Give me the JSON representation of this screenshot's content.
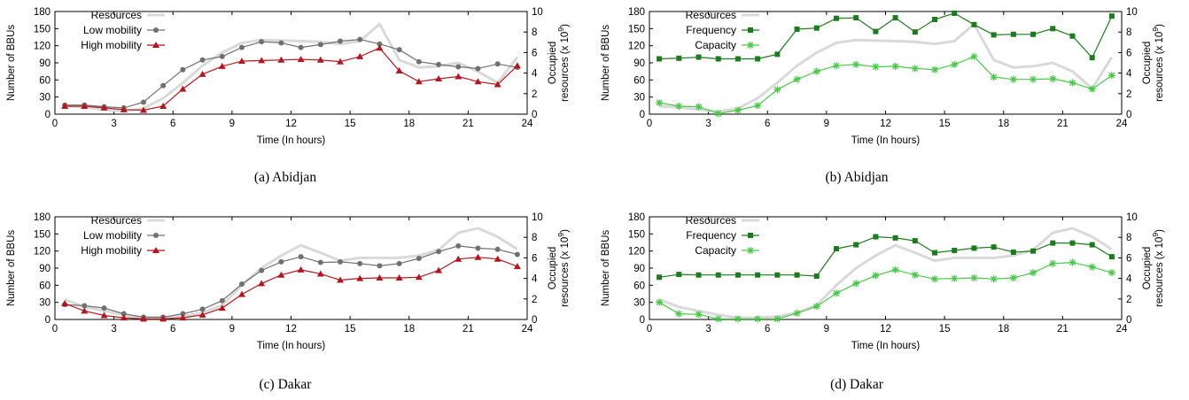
{
  "chart_data": [
    {
      "type": "line",
      "caption": "(a)  Abidjan",
      "xlabel": "Time (In hours)",
      "ylabel": "Number of BBUs",
      "y2label_line1": "Occupied",
      "y2label_line2": "resources (x 10",
      "y2label_exp": "9",
      "y2label_close": ")",
      "xlim": [
        0,
        24
      ],
      "ylim": [
        0,
        180
      ],
      "y2lim": [
        0,
        10
      ],
      "xticks": [
        0,
        3,
        6,
        9,
        12,
        15,
        18,
        21,
        24
      ],
      "yticks": [
        0,
        30,
        60,
        90,
        120,
        150,
        180
      ],
      "y2ticks": [
        0,
        2,
        4,
        6,
        8,
        10
      ],
      "legend_position": "top-left",
      "series": [
        {
          "name": "Resources",
          "style": "resources",
          "color": "#d9d9d9",
          "axis": "y",
          "x": [
            0.5,
            1.5,
            2.5,
            3.5,
            4.5,
            5.5,
            6.5,
            7.5,
            8.5,
            9.5,
            10.5,
            11.5,
            12.5,
            13.5,
            14.5,
            15.5,
            16.5,
            17.5,
            18.5,
            19.5,
            20.5,
            21.5,
            22.5,
            23.5
          ],
          "values": [
            14,
            12,
            8,
            5,
            10,
            28,
            55,
            85,
            108,
            125,
            130,
            129,
            128,
            127,
            123,
            128,
            158,
            95,
            82,
            84,
            90,
            75,
            55,
            100
          ]
        },
        {
          "name": "Low mobility",
          "style": "circle",
          "color": "#707070",
          "axis": "y",
          "x": [
            0.5,
            1.5,
            2.5,
            3.5,
            4.5,
            5.5,
            6.5,
            7.5,
            8.5,
            9.5,
            10.5,
            11.5,
            12.5,
            13.5,
            14.5,
            15.5,
            16.5,
            17.5,
            18.5,
            19.5,
            20.5,
            21.5,
            22.5,
            23.5
          ],
          "values": [
            16,
            16,
            13,
            11,
            21,
            50,
            78,
            95,
            101,
            117,
            127,
            125,
            117,
            122,
            128,
            131,
            123,
            113,
            92,
            87,
            83,
            80,
            88,
            82
          ]
        },
        {
          "name": "High mobility",
          "style": "triangle",
          "color": "#b0171f",
          "axis": "y",
          "x": [
            0.5,
            1.5,
            2.5,
            3.5,
            4.5,
            5.5,
            6.5,
            7.5,
            8.5,
            9.5,
            10.5,
            11.5,
            12.5,
            13.5,
            14.5,
            15.5,
            16.5,
            17.5,
            18.5,
            19.5,
            20.5,
            21.5,
            22.5,
            23.5
          ],
          "values": [
            14,
            14,
            11,
            8,
            7,
            14,
            44,
            70,
            84,
            93,
            94,
            95,
            96,
            95,
            92,
            101,
            116,
            76,
            57,
            62,
            66,
            57,
            52,
            85
          ]
        }
      ]
    },
    {
      "type": "line",
      "caption": "(b)  Abidjan",
      "xlabel": "Time (In hours)",
      "ylabel": "Number of BBUs",
      "y2label_line1": "Occupied",
      "y2label_line2": "resources (x 10",
      "y2label_exp": "9",
      "y2label_close": ")",
      "xlim": [
        0,
        24
      ],
      "ylim": [
        0,
        180
      ],
      "y2lim": [
        0,
        10
      ],
      "xticks": [
        0,
        3,
        6,
        9,
        12,
        15,
        18,
        21,
        24
      ],
      "yticks": [
        0,
        30,
        60,
        90,
        120,
        150,
        180
      ],
      "y2ticks": [
        0,
        2,
        4,
        6,
        8,
        10
      ],
      "legend_position": "top-left",
      "series": [
        {
          "name": "Resources",
          "style": "resources",
          "color": "#d9d9d9",
          "axis": "y",
          "x": [
            0.5,
            1.5,
            2.5,
            3.5,
            4.5,
            5.5,
            6.5,
            7.5,
            8.5,
            9.5,
            10.5,
            11.5,
            12.5,
            13.5,
            14.5,
            15.5,
            16.5,
            17.5,
            18.5,
            19.5,
            20.5,
            21.5,
            22.5,
            23.5
          ],
          "values": [
            14,
            12,
            8,
            5,
            10,
            28,
            55,
            85,
            108,
            125,
            130,
            129,
            128,
            127,
            123,
            128,
            158,
            95,
            82,
            84,
            90,
            75,
            45,
            100
          ]
        },
        {
          "name": "Frequency",
          "style": "square",
          "color": "#1e7a1e",
          "axis": "y",
          "x": [
            0.5,
            1.5,
            2.5,
            3.5,
            4.5,
            5.5,
            6.5,
            7.5,
            8.5,
            9.5,
            10.5,
            11.5,
            12.5,
            13.5,
            14.5,
            15.5,
            16.5,
            17.5,
            18.5,
            19.5,
            20.5,
            21.5,
            22.5,
            23.5
          ],
          "values": [
            97,
            98,
            100,
            97,
            97,
            97,
            105,
            149,
            151,
            168,
            169,
            145,
            169,
            144,
            166,
            177,
            157,
            139,
            140,
            140,
            150,
            137,
            99,
            172
          ]
        },
        {
          "name": "Capacity",
          "style": "star",
          "color": "#4cc74c",
          "axis": "y",
          "x": [
            0.5,
            1.5,
            2.5,
            3.5,
            4.5,
            5.5,
            6.5,
            7.5,
            8.5,
            9.5,
            10.5,
            11.5,
            12.5,
            13.5,
            14.5,
            15.5,
            16.5,
            17.5,
            18.5,
            19.5,
            20.5,
            21.5,
            22.5,
            23.5
          ],
          "values": [
            20,
            14,
            13,
            1,
            7,
            15,
            43,
            61,
            75,
            85,
            87,
            83,
            84,
            80,
            78,
            87,
            101,
            65,
            61,
            61,
            62,
            55,
            44,
            68
          ]
        }
      ]
    },
    {
      "type": "line",
      "caption": "(c)  Dakar",
      "xlabel": "Time (In hours)",
      "ylabel": "Number of BBUs",
      "y2label_line1": "Occupied",
      "y2label_line2": "resources (x 10",
      "y2label_exp": "9",
      "y2label_close": ")",
      "xlim": [
        0,
        24
      ],
      "ylim": [
        0,
        180
      ],
      "y2lim": [
        0,
        10
      ],
      "xticks": [
        0,
        3,
        6,
        9,
        12,
        15,
        18,
        21,
        24
      ],
      "yticks": [
        0,
        30,
        60,
        90,
        120,
        150,
        180
      ],
      "y2ticks": [
        0,
        2,
        4,
        6,
        8,
        10
      ],
      "legend_position": "top-left",
      "series": [
        {
          "name": "Resources",
          "style": "resources",
          "color": "#d9d9d9",
          "axis": "y",
          "x": [
            0.5,
            1.5,
            2.5,
            3.5,
            4.5,
            5.5,
            6.5,
            7.5,
            8.5,
            9.5,
            10.5,
            11.5,
            12.5,
            13.5,
            14.5,
            15.5,
            16.5,
            17.5,
            18.5,
            19.5,
            20.5,
            21.5,
            22.5,
            23.5
          ],
          "values": [
            35,
            22,
            15,
            8,
            3,
            3,
            5,
            12,
            25,
            60,
            90,
            112,
            130,
            117,
            103,
            108,
            108,
            108,
            112,
            122,
            152,
            160,
            145,
            123
          ]
        },
        {
          "name": "Low mobility",
          "style": "circle",
          "color": "#707070",
          "axis": "y",
          "x": [
            0.5,
            1.5,
            2.5,
            3.5,
            4.5,
            5.5,
            6.5,
            7.5,
            8.5,
            9.5,
            10.5,
            11.5,
            12.5,
            13.5,
            14.5,
            15.5,
            16.5,
            17.5,
            18.5,
            19.5,
            20.5,
            21.5,
            22.5,
            23.5
          ],
          "values": [
            26,
            24,
            20,
            10,
            4,
            4,
            10,
            18,
            33,
            62,
            86,
            101,
            110,
            100,
            101,
            98,
            94,
            98,
            107,
            119,
            129,
            125,
            123,
            114
          ]
        },
        {
          "name": "High mobility",
          "style": "triangle",
          "color": "#b0171f",
          "axis": "y",
          "x": [
            0.5,
            1.5,
            2.5,
            3.5,
            4.5,
            5.5,
            6.5,
            7.5,
            8.5,
            9.5,
            10.5,
            11.5,
            12.5,
            13.5,
            14.5,
            15.5,
            16.5,
            17.5,
            18.5,
            19.5,
            20.5,
            21.5,
            22.5,
            23.5
          ],
          "values": [
            28,
            15,
            7,
            3,
            1,
            1,
            3,
            8,
            20,
            44,
            63,
            78,
            87,
            80,
            69,
            72,
            73,
            73,
            74,
            86,
            106,
            109,
            106,
            93
          ]
        }
      ]
    },
    {
      "type": "line",
      "caption": "(d)  Dakar",
      "xlabel": "Time (In hours)",
      "ylabel": "Number of BBUs",
      "y2label_line1": "Occupied",
      "y2label_line2": "resources (x 10",
      "y2label_exp": "9",
      "y2label_close": ")",
      "xlim": [
        0,
        24
      ],
      "ylim": [
        0,
        180
      ],
      "y2lim": [
        0,
        10
      ],
      "xticks": [
        0,
        3,
        6,
        9,
        12,
        15,
        18,
        21,
        24
      ],
      "yticks": [
        0,
        30,
        60,
        90,
        120,
        150,
        180
      ],
      "y2ticks": [
        0,
        2,
        4,
        6,
        8,
        10
      ],
      "legend_position": "top-left",
      "series": [
        {
          "name": "Resources",
          "style": "resources",
          "color": "#d9d9d9",
          "axis": "y",
          "x": [
            0.5,
            1.5,
            2.5,
            3.5,
            4.5,
            5.5,
            6.5,
            7.5,
            8.5,
            9.5,
            10.5,
            11.5,
            12.5,
            13.5,
            14.5,
            15.5,
            16.5,
            17.5,
            18.5,
            19.5,
            20.5,
            21.5,
            22.5,
            23.5
          ],
          "values": [
            35,
            22,
            15,
            8,
            3,
            3,
            5,
            12,
            25,
            60,
            90,
            112,
            130,
            117,
            103,
            108,
            108,
            108,
            112,
            122,
            152,
            160,
            145,
            123
          ]
        },
        {
          "name": "Frequency",
          "style": "square",
          "color": "#1e7a1e",
          "axis": "y",
          "x": [
            0.5,
            1.5,
            2.5,
            3.5,
            4.5,
            5.5,
            6.5,
            7.5,
            8.5,
            9.5,
            10.5,
            11.5,
            12.5,
            13.5,
            14.5,
            15.5,
            16.5,
            17.5,
            18.5,
            19.5,
            20.5,
            21.5,
            22.5,
            23.5
          ],
          "values": [
            74,
            79,
            78,
            78,
            78,
            78,
            78,
            78,
            76,
            124,
            131,
            145,
            143,
            138,
            117,
            121,
            125,
            127,
            118,
            120,
            134,
            134,
            131,
            110
          ]
        },
        {
          "name": "Capacity",
          "style": "star",
          "color": "#4cc74c",
          "axis": "y",
          "x": [
            0.5,
            1.5,
            2.5,
            3.5,
            4.5,
            5.5,
            6.5,
            7.5,
            8.5,
            9.5,
            10.5,
            11.5,
            12.5,
            13.5,
            14.5,
            15.5,
            16.5,
            17.5,
            18.5,
            19.5,
            20.5,
            21.5,
            22.5,
            23.5
          ],
          "values": [
            30,
            10,
            9,
            1,
            1,
            1,
            1,
            11,
            23,
            46,
            63,
            77,
            87,
            78,
            71,
            72,
            73,
            71,
            73,
            82,
            98,
            100,
            92,
            82
          ]
        }
      ]
    }
  ]
}
